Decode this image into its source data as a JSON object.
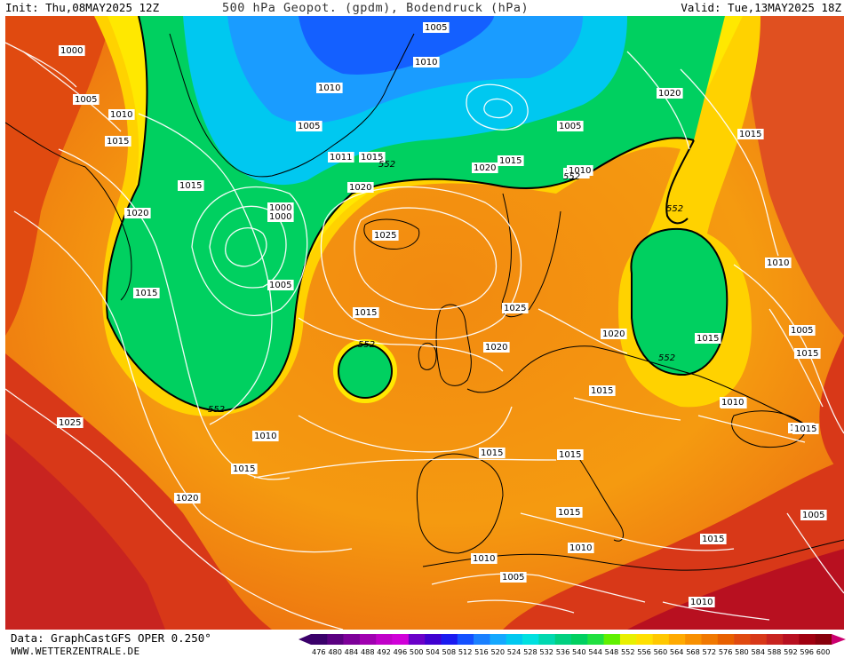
{
  "header": {
    "init": "Init: Thu,08MAY2025 12Z",
    "title": "500 hPa Geopot. (gpdm), Bodendruck (hPa)",
    "valid": "Valid: Tue,13MAY2025 18Z"
  },
  "footer": {
    "data_source": "Data: GraphCastGFS OPER 0.250°",
    "website": "WWW.WETTERZENTRALE.DE"
  },
  "colorbar": {
    "ticks": [
      "476",
      "480",
      "484",
      "488",
      "492",
      "496",
      "500",
      "504",
      "508",
      "512",
      "516",
      "520",
      "524",
      "528",
      "532",
      "536",
      "540",
      "544",
      "548",
      "552",
      "556",
      "560",
      "564",
      "568",
      "572",
      "576",
      "580",
      "584",
      "588",
      "592",
      "596",
      "600"
    ],
    "colors": [
      "#3a006a",
      "#5a0080",
      "#7d0099",
      "#a000b0",
      "#c000c8",
      "#d000d8",
      "#6a00c8",
      "#4000d0",
      "#1a1af0",
      "#1450ff",
      "#1a80ff",
      "#14a8ff",
      "#00c8f0",
      "#00e0e0",
      "#00d8b0",
      "#00d080",
      "#00d060",
      "#20e040",
      "#60f000",
      "#e8f000",
      "#ffe000",
      "#ffc800",
      "#ffaa00",
      "#f89000",
      "#f07800",
      "#e86000",
      "#e04a10",
      "#d83818",
      "#c82420",
      "#b81020",
      "#a00010",
      "#88000c"
    ]
  },
  "isobar_labels": [
    {
      "text": "1000"
    },
    {
      "text": "1005"
    },
    {
      "text": "1010"
    },
    {
      "text": "1015"
    },
    {
      "text": "1020"
    },
    {
      "text": "1015"
    },
    {
      "text": "1005"
    },
    {
      "text": "1010"
    },
    {
      "text": "1010"
    },
    {
      "text": "1005"
    },
    {
      "text": "1005"
    },
    {
      "text": "1020"
    },
    {
      "text": "1015"
    },
    {
      "text": "1005"
    },
    {
      "text": "1011"
    },
    {
      "text": "1015"
    },
    {
      "text": "552"
    },
    {
      "text": "1020"
    },
    {
      "text": "1000"
    },
    {
      "text": "1000"
    },
    {
      "text": "1025"
    },
    {
      "text": "1020"
    },
    {
      "text": "1015"
    },
    {
      "text": "1010"
    },
    {
      "text": "552"
    },
    {
      "text": "552"
    },
    {
      "text": "1005"
    },
    {
      "text": "1015"
    },
    {
      "text": "1025"
    },
    {
      "text": "1015"
    },
    {
      "text": "552"
    },
    {
      "text": "1020"
    },
    {
      "text": "1020"
    },
    {
      "text": "1010"
    },
    {
      "text": "1015"
    },
    {
      "text": "1005"
    },
    {
      "text": "1015"
    },
    {
      "text": "552"
    },
    {
      "text": "1015"
    },
    {
      "text": "1010"
    },
    {
      "text": "1025"
    },
    {
      "text": "552"
    },
    {
      "text": "1010"
    },
    {
      "text": "1015"
    },
    {
      "text": "1015"
    },
    {
      "text": "1015"
    },
    {
      "text": "1020"
    },
    {
      "text": "1015"
    },
    {
      "text": "1010"
    },
    {
      "text": "1005"
    },
    {
      "text": "1010"
    },
    {
      "text": "1015"
    },
    {
      "text": "1010"
    },
    {
      "text": "1005"
    },
    {
      "text": "1010"
    },
    {
      "text": "1015"
    },
    {
      "text": "1010"
    }
  ]
}
